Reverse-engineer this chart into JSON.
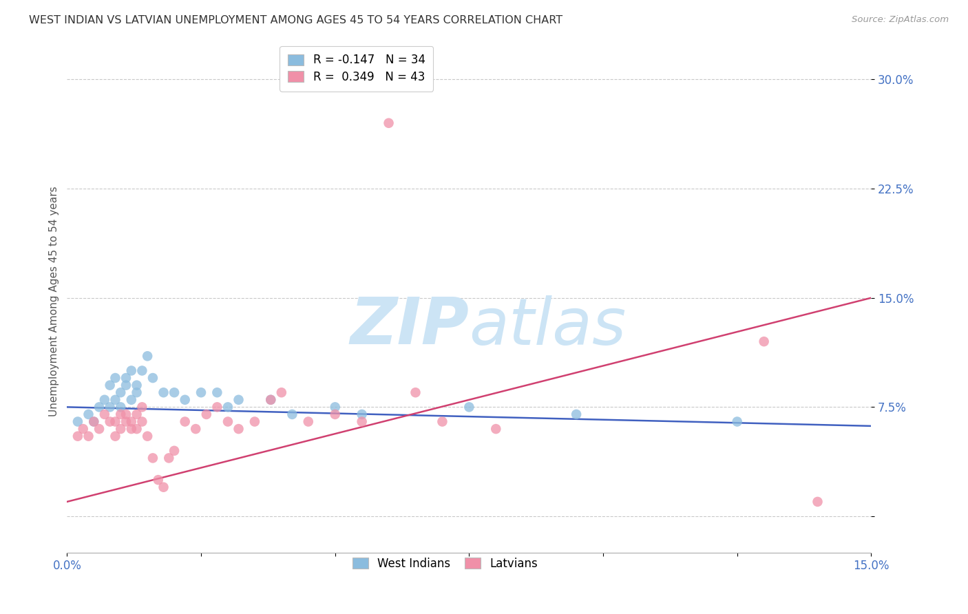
{
  "title": "WEST INDIAN VS LATVIAN UNEMPLOYMENT AMONG AGES 45 TO 54 YEARS CORRELATION CHART",
  "source": "Source: ZipAtlas.com",
  "ylabel": "Unemployment Among Ages 45 to 54 years",
  "x_min": 0.0,
  "x_max": 0.15,
  "y_min": -0.025,
  "y_max": 0.32,
  "x_ticks": [
    0.0,
    0.025,
    0.05,
    0.075,
    0.1,
    0.125,
    0.15
  ],
  "x_tick_labels": [
    "0.0%",
    "",
    "",
    "",
    "",
    "",
    "15.0%"
  ],
  "y_ticks": [
    0.0,
    0.075,
    0.15,
    0.225,
    0.3
  ],
  "y_tick_labels": [
    "",
    "7.5%",
    "15.0%",
    "22.5%",
    "30.0%"
  ],
  "legend_R_labels": [
    "R = -0.147   N = 34",
    "R =  0.349   N = 43"
  ],
  "west_indians_color": "#8bbcde",
  "latvians_color": "#f090a8",
  "west_indians_line_color": "#4060c0",
  "latvians_line_color": "#d04070",
  "background_color": "#ffffff",
  "watermark_color": "#cce4f5",
  "axis_label_color": "#4472c4",
  "grid_color": "#bbbbbb",
  "wi_line_start_y": 0.075,
  "wi_line_end_y": 0.062,
  "lv_line_start_y": 0.01,
  "lv_line_end_y": 0.15,
  "west_indians_x": [
    0.002,
    0.004,
    0.005,
    0.006,
    0.007,
    0.008,
    0.008,
    0.009,
    0.009,
    0.01,
    0.01,
    0.011,
    0.011,
    0.012,
    0.012,
    0.013,
    0.013,
    0.014,
    0.015,
    0.016,
    0.018,
    0.02,
    0.022,
    0.025,
    0.028,
    0.03,
    0.032,
    0.038,
    0.042,
    0.05,
    0.055,
    0.075,
    0.095,
    0.125
  ],
  "west_indians_y": [
    0.065,
    0.07,
    0.065,
    0.075,
    0.08,
    0.075,
    0.09,
    0.08,
    0.095,
    0.075,
    0.085,
    0.09,
    0.095,
    0.08,
    0.1,
    0.085,
    0.09,
    0.1,
    0.11,
    0.095,
    0.085,
    0.085,
    0.08,
    0.085,
    0.085,
    0.075,
    0.08,
    0.08,
    0.07,
    0.075,
    0.07,
    0.075,
    0.07,
    0.065
  ],
  "latvians_x": [
    0.002,
    0.003,
    0.004,
    0.005,
    0.006,
    0.007,
    0.008,
    0.009,
    0.009,
    0.01,
    0.01,
    0.011,
    0.011,
    0.012,
    0.012,
    0.013,
    0.013,
    0.014,
    0.014,
    0.015,
    0.016,
    0.017,
    0.018,
    0.019,
    0.02,
    0.022,
    0.024,
    0.026,
    0.028,
    0.03,
    0.032,
    0.035,
    0.038,
    0.04,
    0.045,
    0.05,
    0.055,
    0.06,
    0.065,
    0.07,
    0.08,
    0.13,
    0.14
  ],
  "latvians_y": [
    0.055,
    0.06,
    0.055,
    0.065,
    0.06,
    0.07,
    0.065,
    0.055,
    0.065,
    0.06,
    0.07,
    0.065,
    0.07,
    0.06,
    0.065,
    0.06,
    0.07,
    0.075,
    0.065,
    0.055,
    0.04,
    0.025,
    0.02,
    0.04,
    0.045,
    0.065,
    0.06,
    0.07,
    0.075,
    0.065,
    0.06,
    0.065,
    0.08,
    0.085,
    0.065,
    0.07,
    0.065,
    0.27,
    0.085,
    0.065,
    0.06,
    0.12,
    0.01
  ]
}
